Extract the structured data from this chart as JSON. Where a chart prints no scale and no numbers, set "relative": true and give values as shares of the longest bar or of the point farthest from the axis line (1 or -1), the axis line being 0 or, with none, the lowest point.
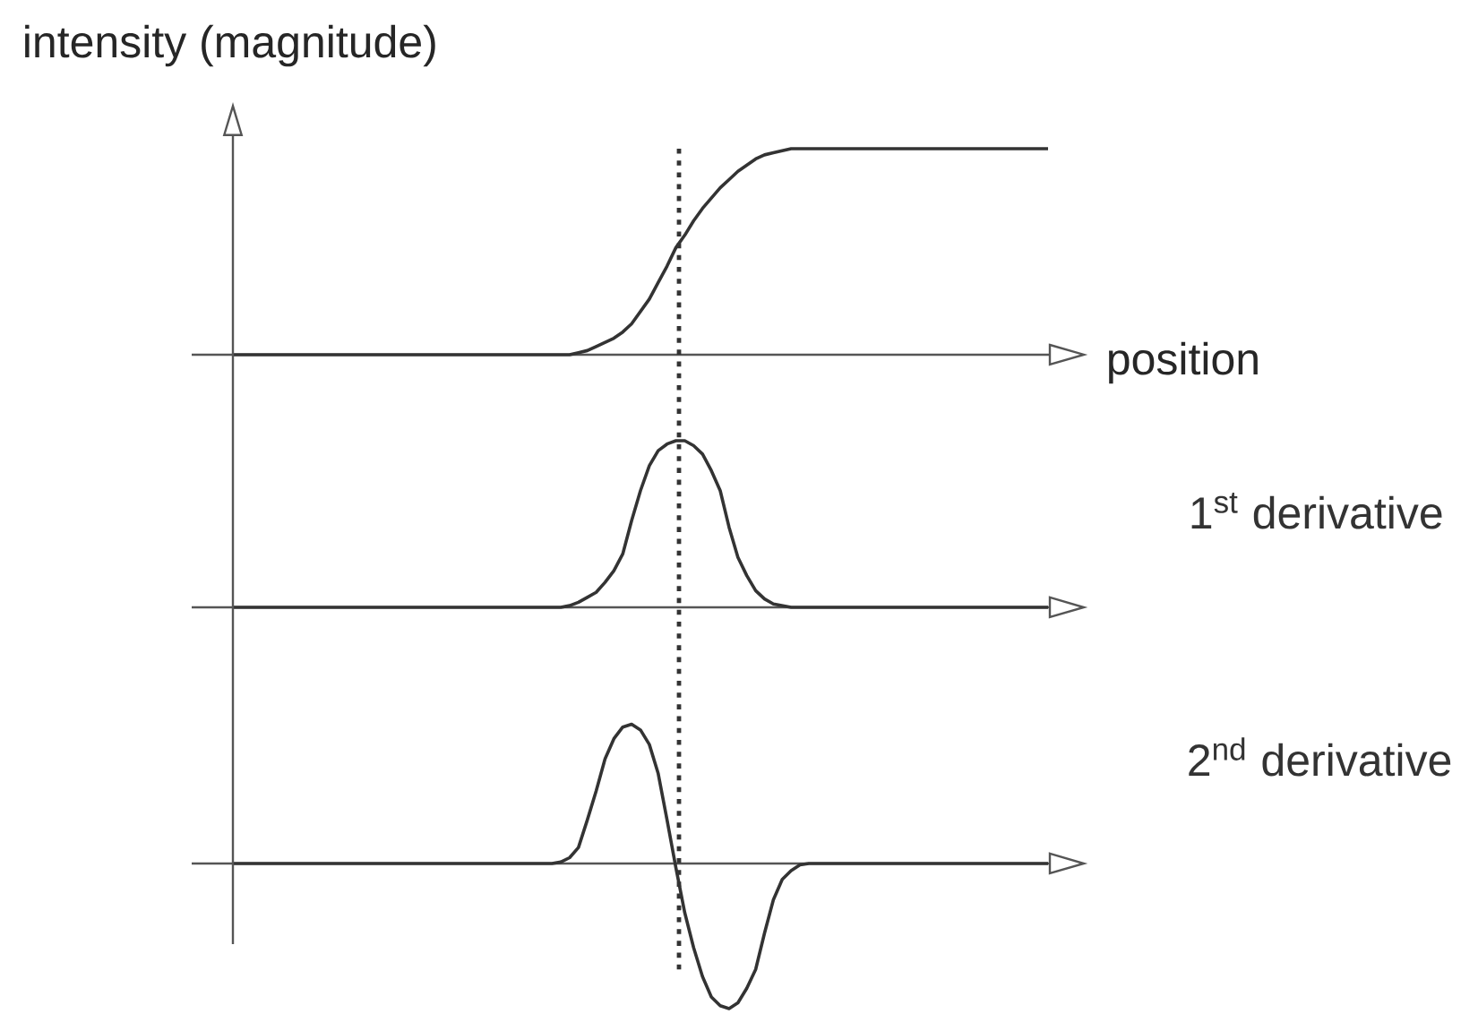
{
  "chart_data": [
    {
      "type": "line",
      "ylabel": "intensity (magnitude)",
      "xlabel": "position",
      "relative": true,
      "color": "#333333",
      "categories": [
        null,
        null,
        null,
        null,
        null,
        null,
        null,
        null,
        null,
        null,
        null,
        null,
        null,
        null,
        null,
        null,
        null,
        null,
        null,
        null,
        null,
        null,
        null,
        null,
        null,
        null,
        null,
        null,
        null,
        null,
        null,
        null,
        null,
        null,
        null,
        null,
        null,
        null,
        null,
        null,
        null,
        null,
        null,
        null,
        null,
        null,
        null,
        null,
        null,
        null,
        null,
        null,
        null,
        null,
        null,
        null,
        null,
        null,
        null,
        null,
        null,
        null,
        null,
        null,
        null,
        null,
        null,
        null,
        null,
        null,
        null,
        null,
        null,
        null,
        null,
        null,
        null,
        null,
        null,
        null,
        null,
        null,
        null,
        null,
        null,
        null,
        null,
        null,
        null,
        null,
        null,
        null,
        null
      ],
      "values": [
        0,
        0,
        0,
        0,
        0,
        0,
        0,
        0,
        0,
        0,
        0,
        0,
        0,
        0,
        0,
        0,
        0,
        0,
        0,
        0,
        0,
        0,
        0,
        0,
        0,
        0,
        0,
        0,
        0,
        0,
        0,
        0,
        0,
        0,
        0,
        0,
        0,
        0,
        0,
        0.01,
        0.02,
        0.04,
        0.06,
        0.08,
        0.11,
        0.15,
        0.21,
        0.27,
        0.35,
        0.43,
        0.52,
        0.58,
        0.65,
        0.71,
        0.76,
        0.81,
        0.85,
        0.89,
        0.92,
        0.95,
        0.97,
        0.98,
        0.99,
        1,
        1,
        1,
        1,
        1,
        1,
        1,
        1,
        1,
        1,
        1,
        1,
        1,
        1,
        1,
        1,
        1,
        1,
        1,
        1,
        1,
        1,
        1,
        1,
        1,
        1,
        1,
        1,
        1,
        1
      ]
    },
    {
      "type": "line",
      "relative": true,
      "categories": [
        null,
        null,
        null,
        null,
        null,
        null,
        null,
        null,
        null,
        null,
        null,
        null,
        null,
        null,
        null,
        null,
        null,
        null,
        null,
        null,
        null,
        null,
        null,
        null,
        null,
        null,
        null,
        null,
        null,
        null,
        null,
        null,
        null,
        null,
        null,
        null,
        null,
        null,
        null,
        null,
        null,
        null,
        null,
        null,
        null,
        null,
        null,
        null,
        null,
        null,
        null,
        null,
        null,
        null,
        null,
        null,
        null,
        null,
        null,
        null,
        null,
        null,
        null,
        null,
        null,
        null,
        null,
        null,
        null,
        null,
        null,
        null,
        null,
        null,
        null,
        null,
        null,
        null,
        null,
        null,
        null,
        null,
        null,
        null,
        null,
        null,
        null,
        null,
        null,
        null,
        null,
        null,
        null
      ],
      "series": [
        {
          "name": "1$^{st}$ derivative",
          "color": "#333333",
          "values": [
            0,
            0,
            0,
            0,
            0,
            0,
            0,
            0,
            0,
            0,
            0,
            0,
            0,
            0,
            0,
            0,
            0,
            0,
            0,
            0,
            0,
            0,
            0,
            0,
            0,
            0,
            0,
            0,
            0,
            0,
            0,
            0,
            0,
            0,
            0,
            0,
            0,
            0,
            0.01,
            0.03,
            0.06,
            0.09,
            0.15,
            0.22,
            0.32,
            0.52,
            0.7,
            0.85,
            0.94,
            0.98,
            1,
            1,
            0.97,
            0.92,
            0.82,
            0.7,
            0.48,
            0.3,
            0.19,
            0.1,
            0.05,
            0.02,
            0.01,
            0,
            0,
            0,
            0,
            0,
            0,
            0,
            0,
            0,
            0,
            0,
            0,
            0,
            0,
            0,
            0,
            0,
            0,
            0,
            0,
            0,
            0,
            0,
            0,
            0,
            0,
            0,
            0,
            0,
            0
          ]
        }
      ]
    },
    {
      "type": "line",
      "relative": true,
      "categories": [
        null,
        null,
        null,
        null,
        null,
        null,
        null,
        null,
        null,
        null,
        null,
        null,
        null,
        null,
        null,
        null,
        null,
        null,
        null,
        null,
        null,
        null,
        null,
        null,
        null,
        null,
        null,
        null,
        null,
        null,
        null,
        null,
        null,
        null,
        null,
        null,
        null,
        null,
        null,
        null,
        null,
        null,
        null,
        null,
        null,
        null,
        null,
        null,
        null,
        null,
        null,
        null,
        null,
        null,
        null,
        null,
        null,
        null,
        null,
        null,
        null,
        null,
        null,
        null,
        null,
        null,
        null,
        null,
        null,
        null,
        null,
        null,
        null,
        null,
        null,
        null,
        null,
        null,
        null,
        null,
        null,
        null,
        null,
        null,
        null,
        null,
        null,
        null,
        null,
        null,
        null,
        null,
        null
      ],
      "series": [
        {
          "name": "2$^{nd}$ derivative",
          "color": "#333333",
          "values": [
            0,
            0,
            0,
            0,
            0,
            0,
            0,
            0,
            0,
            0,
            0,
            0,
            0,
            0,
            0,
            0,
            0,
            0,
            0,
            0,
            0,
            0,
            0,
            0,
            0,
            0,
            0,
            0,
            0,
            0,
            0,
            0,
            0,
            0,
            0,
            0,
            0,
            0.01,
            0.04,
            0.11,
            0.3,
            0.5,
            0.72,
            0.86,
            0.94,
            0.96,
            0.92,
            0.82,
            0.62,
            0.3,
            -0.03,
            -0.34,
            -0.58,
            -0.78,
            -0.92,
            -0.98,
            -1,
            -0.96,
            -0.86,
            -0.73,
            -0.48,
            -0.25,
            -0.11,
            -0.05,
            -0.01,
            0,
            0,
            0,
            0,
            0,
            0,
            0,
            0,
            0,
            0,
            0,
            0,
            0,
            0,
            0,
            0,
            0,
            0,
            0,
            0,
            0,
            0,
            0,
            0,
            0,
            0,
            0,
            0
          ]
        }
      ]
    }
  ]
}
